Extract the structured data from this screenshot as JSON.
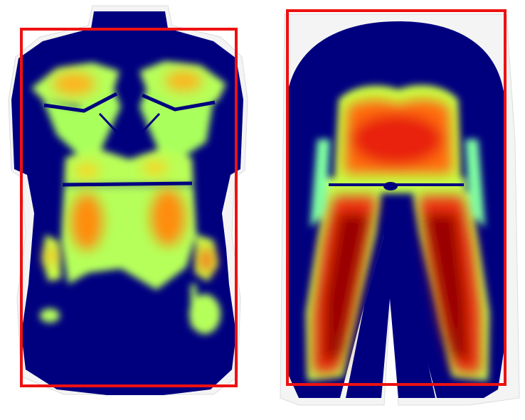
{
  "figure": {
    "background": "#ffffff",
    "frame_color": "#ee1111",
    "colormap": [
      "#00007f",
      "#0a50ff",
      "#2fd8ff",
      "#a6ff5a",
      "#e6ff3a",
      "#ffd21a",
      "#ff7a0a",
      "#e41a00",
      "#8b0000"
    ],
    "panels": [
      {
        "view": "torso-back",
        "highlight": "bounding-box"
      },
      {
        "view": "legs-pelvis",
        "highlight": "bounding-box"
      }
    ]
  }
}
